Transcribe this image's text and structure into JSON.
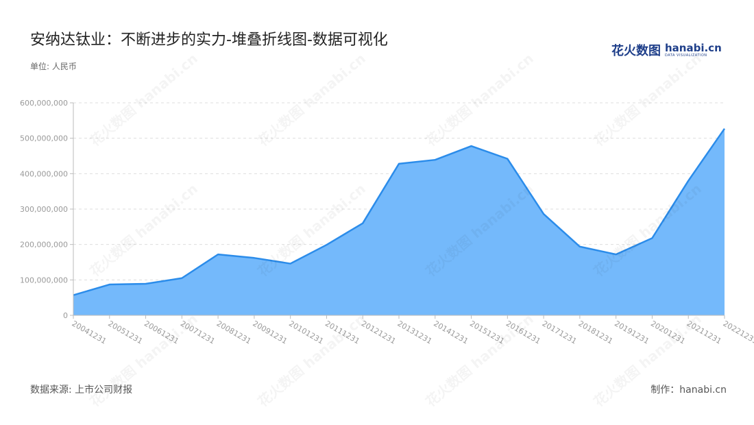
{
  "header": {
    "title": "安纳达钛业：不断进步的实力-堆叠折线图-数据可视化",
    "unit": "单位: 人民币"
  },
  "logo": {
    "cn": "花火数图",
    "en": "hanabi.cn",
    "sub": "DATA VISUALIZATION"
  },
  "footer": {
    "source": "数据来源: 上市公司财报",
    "credit": "制作：hanabi.cn"
  },
  "watermark": {
    "text": "花火数图 hanabi.cn"
  },
  "colors": {
    "line": "#2b8cea",
    "area": "#74b9fb",
    "grid": "#dddddd",
    "axis": "#bbbbbb"
  },
  "chart_data": {
    "type": "area",
    "title": "安纳达钛业：不断进步的实力-堆叠折线图-数据可视化",
    "ylabel": "单位: 人民币",
    "xlabel": "",
    "ylim": [
      0,
      600000000
    ],
    "yticks": [
      0,
      100000000,
      200000000,
      300000000,
      400000000,
      500000000,
      600000000
    ],
    "ytick_labels": [
      "0",
      "100,000,000",
      "200,000,000",
      "300,000,000",
      "400,000,000",
      "500,000,000",
      "600,000,000"
    ],
    "grid": true,
    "categories": [
      "20041231",
      "20051231",
      "20061231",
      "20071231",
      "20081231",
      "20091231",
      "20101231",
      "20111231",
      "20121231",
      "20131231",
      "20141231",
      "20151231",
      "20161231",
      "20171231",
      "20181231",
      "20191231",
      "20201231",
      "20211231",
      "20221231"
    ],
    "series": [
      {
        "values": [
          57000000,
          87000000,
          89000000,
          105000000,
          172000000,
          162000000,
          146000000,
          199000000,
          260000000,
          428000000,
          439000000,
          478000000,
          442000000,
          286000000,
          194000000,
          172000000,
          218000000,
          380000000,
          527000000
        ]
      }
    ]
  }
}
